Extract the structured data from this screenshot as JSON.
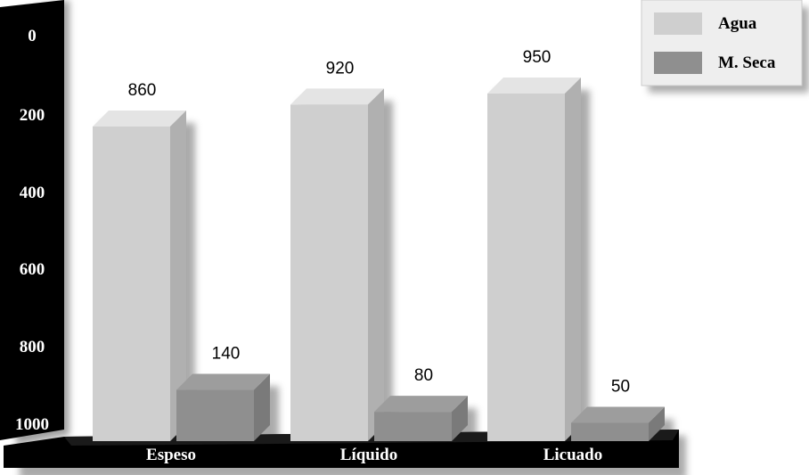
{
  "chart_data": {
    "type": "bar",
    "categories": [
      "Espeso",
      "Líquido",
      "Licuado"
    ],
    "series": [
      {
        "name": "Agua",
        "values": [
          860,
          920,
          950
        ]
      },
      {
        "name": "M. Seca",
        "values": [
          140,
          80,
          50
        ]
      }
    ],
    "ylim": [
      0,
      1000
    ],
    "yticks": [
      0,
      200,
      400,
      600,
      800,
      1000
    ],
    "ytick_labels": [
      "0",
      "200",
      "400",
      "600",
      "800",
      "1000"
    ],
    "data_labels": [
      [
        "860",
        "920",
        "950"
      ],
      [
        "140",
        "80",
        "50"
      ]
    ],
    "legend": {
      "position": "top-right",
      "entries": [
        "Agua",
        "M. Seca"
      ]
    },
    "grid": false,
    "colors": {
      "Agua": "#cfcfcf",
      "M. Seca": "#8f8f8f",
      "axis_wall": "#000000"
    }
  }
}
